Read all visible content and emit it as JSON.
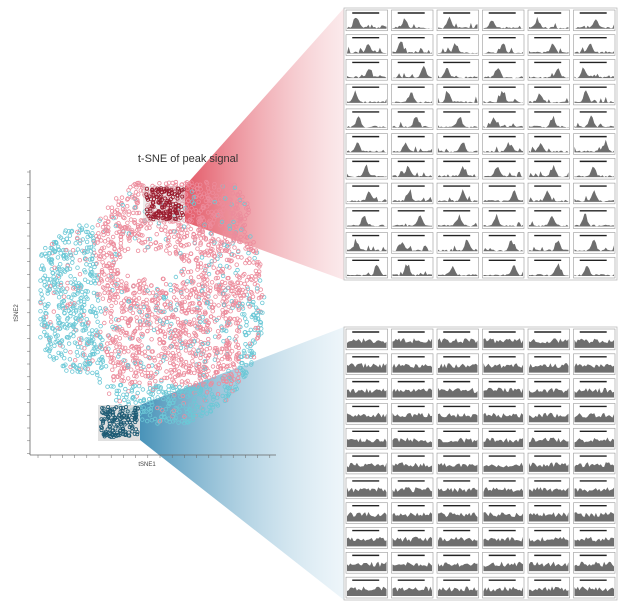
{
  "title": "t-SNE of peak signal",
  "x_axis_label": "tSNE1",
  "y_axis_label": "tSNE2"
}
